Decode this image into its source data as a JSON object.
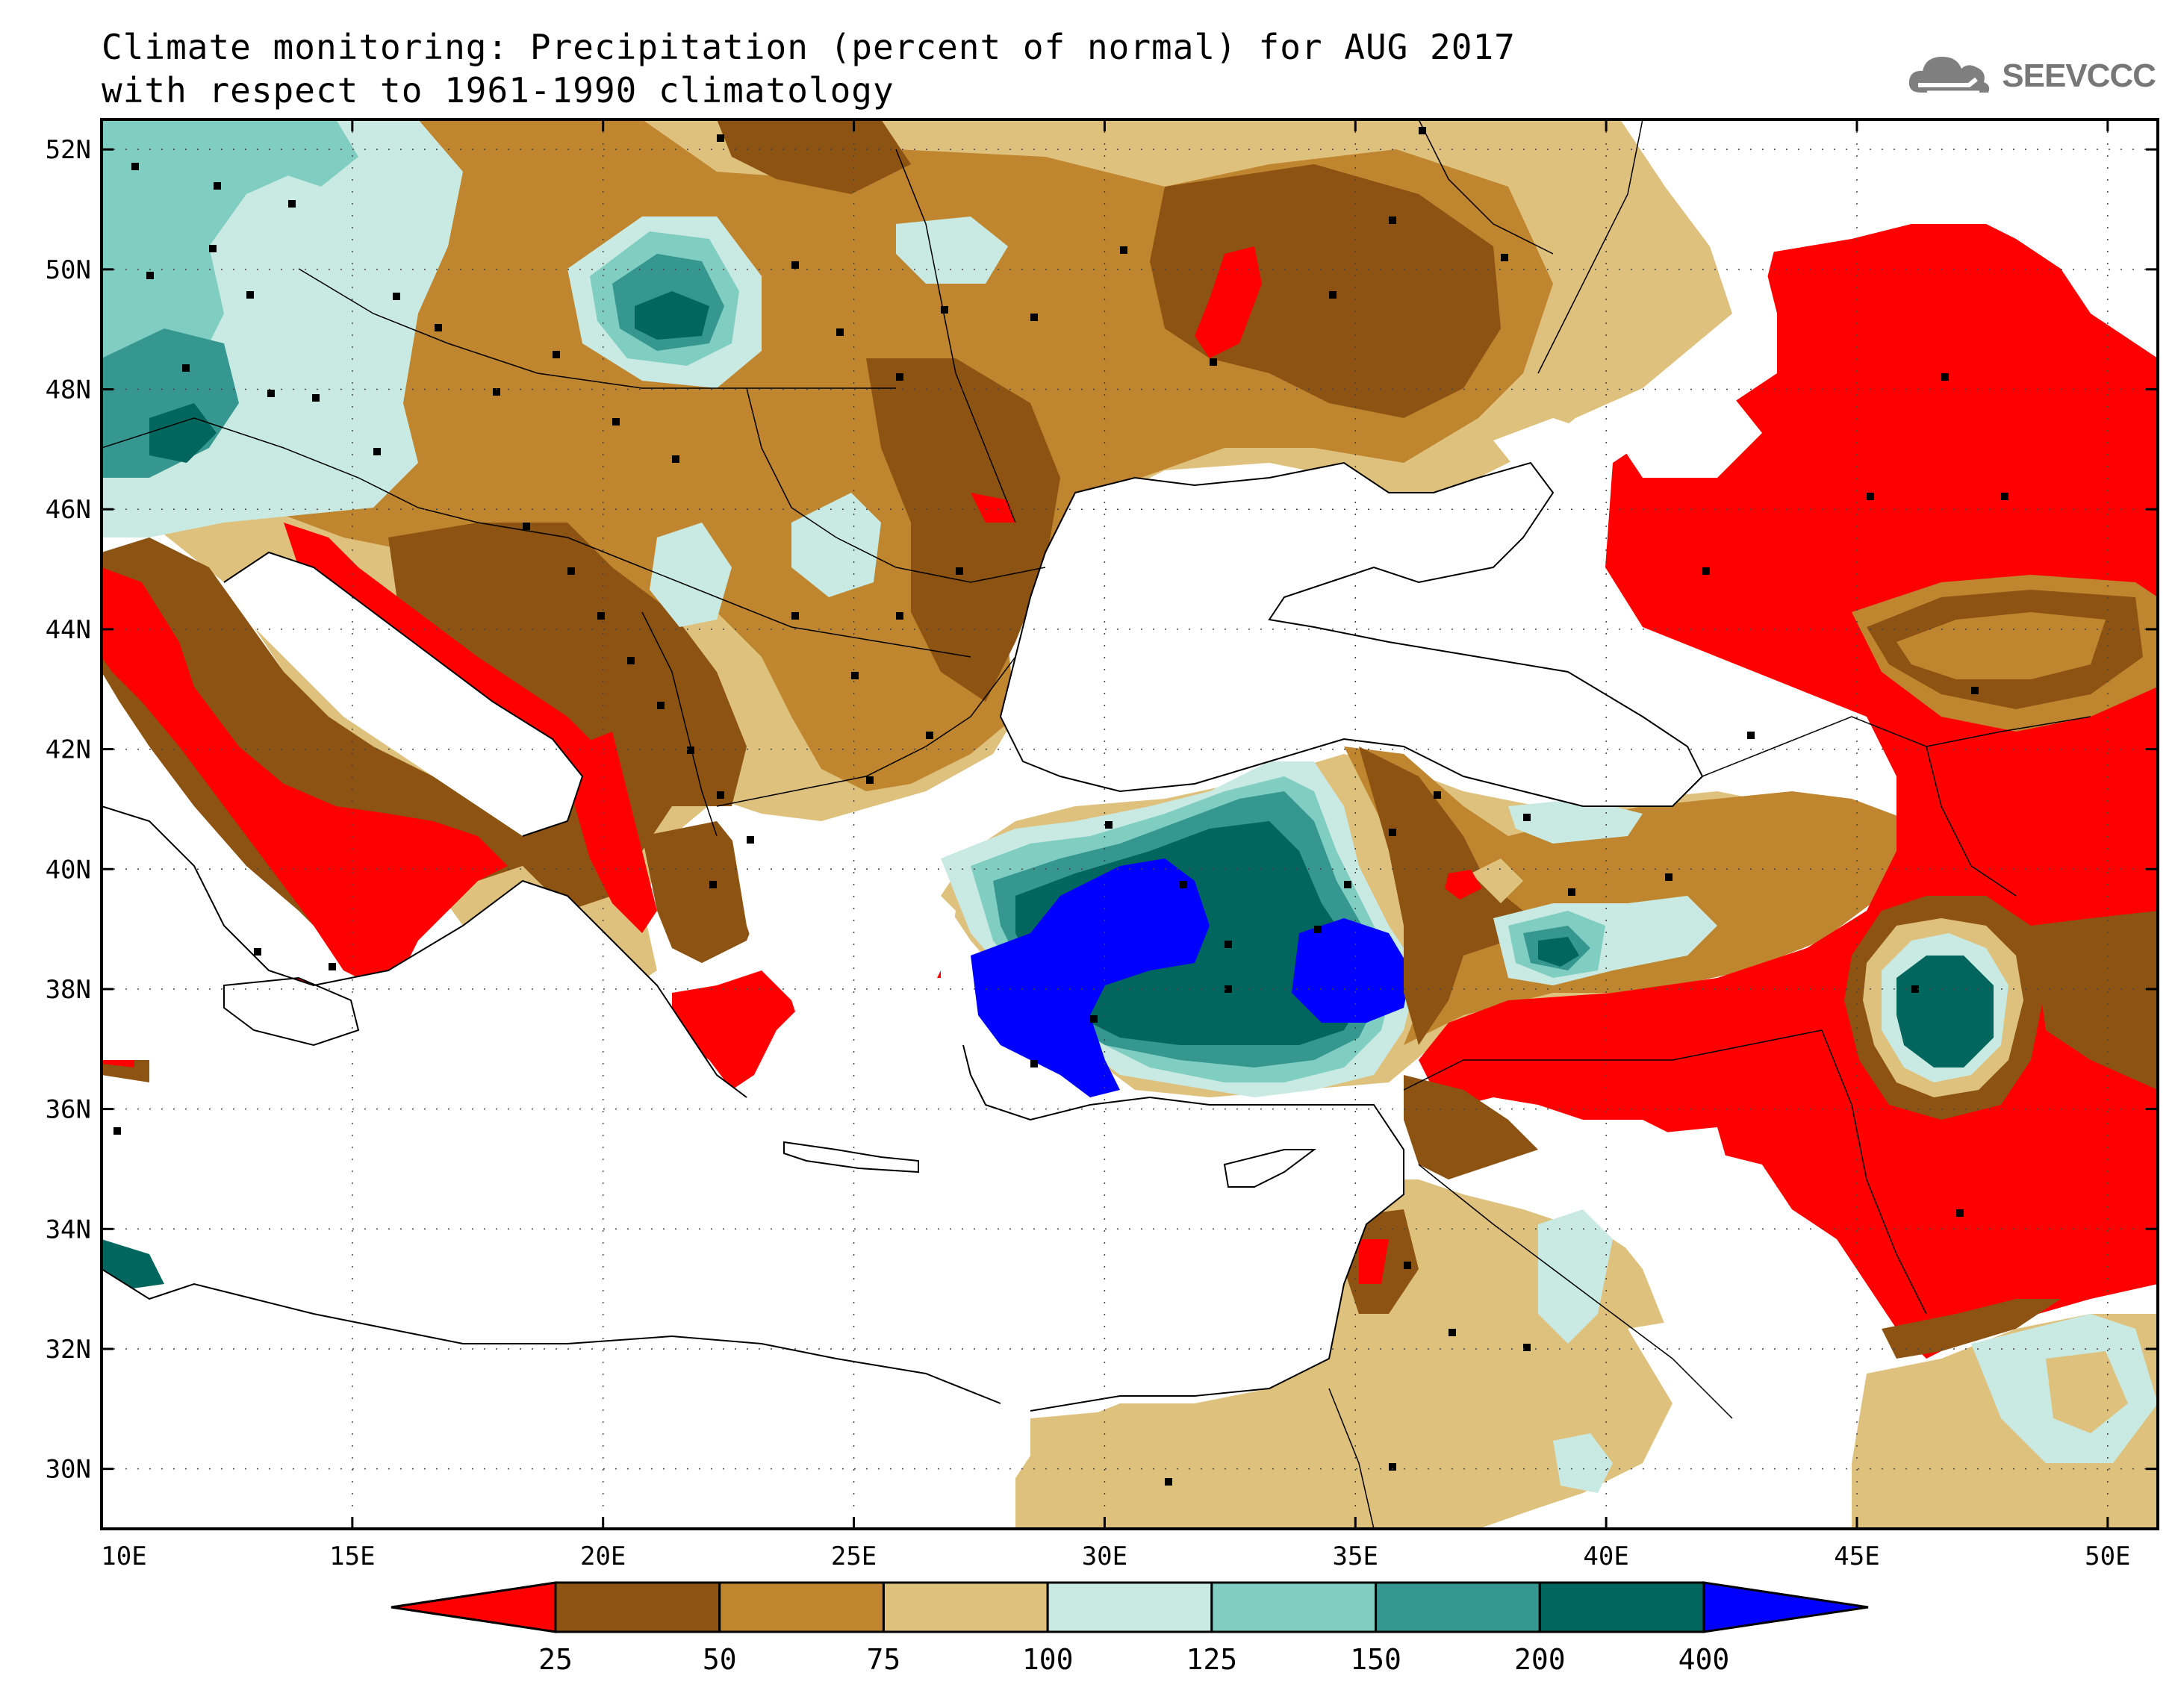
{
  "header": {
    "title_line1": "Climate monitoring: Precipitation (percent of normal) for AUG 2017",
    "title_line2": "with respect to 1961-1990 climatology",
    "logo_text": "SEEVCCC"
  },
  "axes": {
    "lon_ticks": [
      "10E",
      "15E",
      "20E",
      "25E",
      "30E",
      "35E",
      "40E",
      "45E",
      "50E"
    ],
    "lat_ticks": [
      "30N",
      "32N",
      "34N",
      "36N",
      "38N",
      "40N",
      "42N",
      "44N",
      "46N",
      "48N",
      "50N",
      "52N"
    ]
  },
  "colorbar": {
    "labels": [
      "25",
      "50",
      "75",
      "100",
      "125",
      "150",
      "200",
      "400"
    ],
    "colors": [
      "#ff0000",
      "#8c5312",
      "#bf852f",
      "#dfc17e",
      "#c8eae2",
      "#80cdc1",
      "#35978f",
      "#01665e",
      "#0000ff"
    ]
  },
  "palette": {
    "red": "#ff0000",
    "brown_dark": "#8c5312",
    "brown": "#bf852f",
    "tan": "#dfc17e",
    "mint": "#c8eae2",
    "teal_light": "#80cdc1",
    "teal": "#35978f",
    "teal_dark": "#01665e",
    "blue": "#0000ff"
  }
}
